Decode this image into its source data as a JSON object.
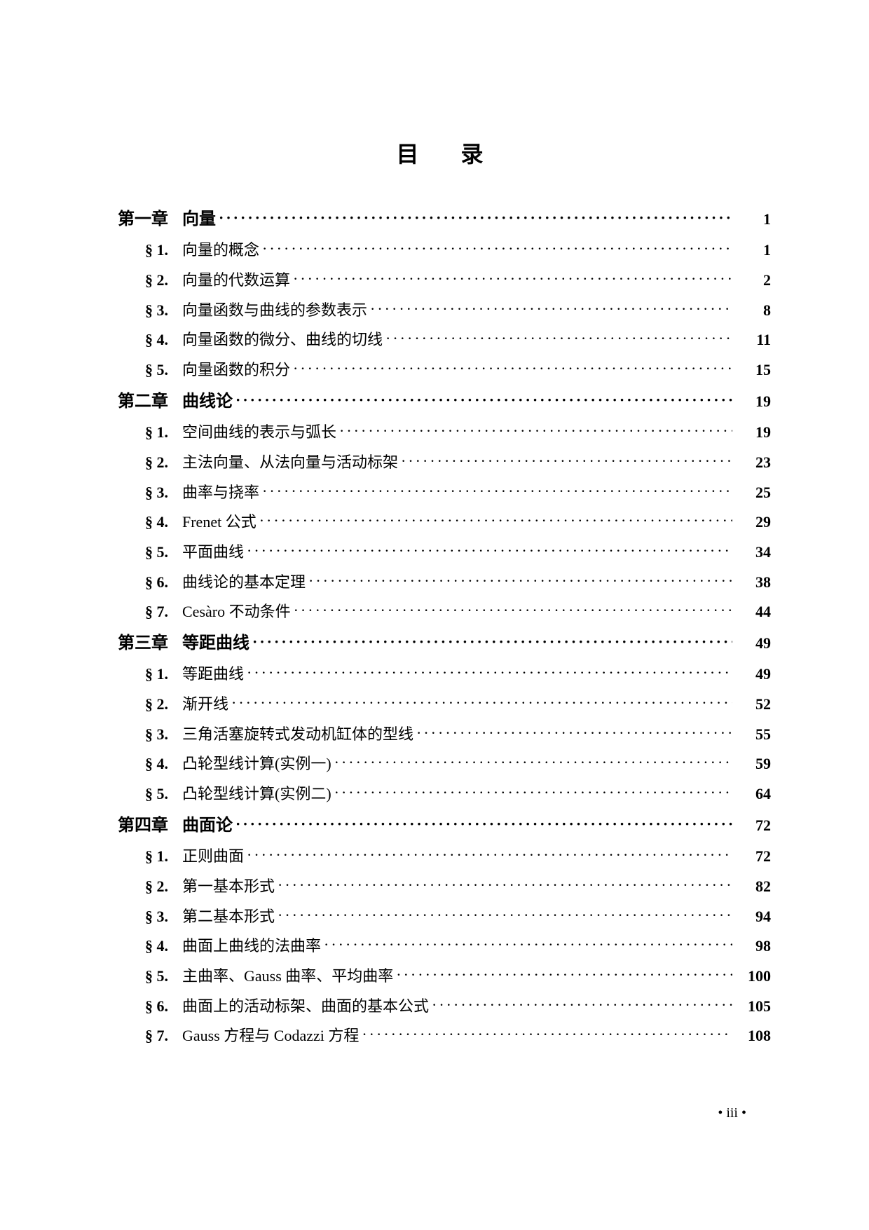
{
  "title": "目录",
  "page_number": "• iii •",
  "dot_char": "·",
  "entries": [
    {
      "type": "chapter",
      "label": "第一章",
      "title": "向量",
      "page": "1"
    },
    {
      "type": "section",
      "label": "§ 1.",
      "title": "向量的概念",
      "page": "1"
    },
    {
      "type": "section",
      "label": "§ 2.",
      "title": "向量的代数运算",
      "page": "2"
    },
    {
      "type": "section",
      "label": "§ 3.",
      "title": "向量函数与曲线的参数表示",
      "page": "8"
    },
    {
      "type": "section",
      "label": "§ 4.",
      "title": "向量函数的微分、曲线的切线",
      "page": "11"
    },
    {
      "type": "section",
      "label": "§ 5.",
      "title": "向量函数的积分",
      "page": "15"
    },
    {
      "type": "chapter",
      "label": "第二章",
      "title": "曲线论",
      "page": "19"
    },
    {
      "type": "section",
      "label": "§ 1.",
      "title": "空间曲线的表示与弧长",
      "page": "19"
    },
    {
      "type": "section",
      "label": "§ 2.",
      "title": "主法向量、从法向量与活动标架",
      "page": "23"
    },
    {
      "type": "section",
      "label": "§ 3.",
      "title": "曲率与挠率",
      "page": "25"
    },
    {
      "type": "section",
      "label": "§ 4.",
      "title": "Frenet 公式",
      "page": "29"
    },
    {
      "type": "section",
      "label": "§ 5.",
      "title": "平面曲线",
      "page": "34"
    },
    {
      "type": "section",
      "label": "§ 6.",
      "title": "曲线论的基本定理",
      "page": "38"
    },
    {
      "type": "section",
      "label": "§ 7.",
      "title": "Cesàro 不动条件",
      "page": "44"
    },
    {
      "type": "chapter",
      "label": "第三章",
      "title": "等距曲线",
      "page": "49"
    },
    {
      "type": "section",
      "label": "§ 1.",
      "title": "等距曲线",
      "page": "49"
    },
    {
      "type": "section",
      "label": "§ 2.",
      "title": "渐开线",
      "page": "52"
    },
    {
      "type": "section",
      "label": "§ 3.",
      "title": "三角活塞旋转式发动机缸体的型线",
      "page": "55"
    },
    {
      "type": "section",
      "label": "§ 4.",
      "title": "凸轮型线计算(实例一)",
      "page": "59"
    },
    {
      "type": "section",
      "label": "§ 5.",
      "title": "凸轮型线计算(实例二)",
      "page": "64"
    },
    {
      "type": "chapter",
      "label": "第四章",
      "title": "曲面论",
      "page": "72"
    },
    {
      "type": "section",
      "label": "§ 1.",
      "title": "正则曲面",
      "page": "72"
    },
    {
      "type": "section",
      "label": "§ 2.",
      "title": "第一基本形式",
      "page": "82"
    },
    {
      "type": "section",
      "label": "§ 3.",
      "title": "第二基本形式",
      "page": "94"
    },
    {
      "type": "section",
      "label": "§ 4.",
      "title": "曲面上曲线的法曲率",
      "page": "98"
    },
    {
      "type": "section",
      "label": "§ 5.",
      "title": "主曲率、Gauss 曲率、平均曲率",
      "page": "100"
    },
    {
      "type": "section",
      "label": "§ 6.",
      "title": "曲面上的活动标架、曲面的基本公式",
      "page": "105"
    },
    {
      "type": "section",
      "label": "§ 7.",
      "title": "Gauss 方程与 Codazzi 方程",
      "page": "108"
    }
  ]
}
